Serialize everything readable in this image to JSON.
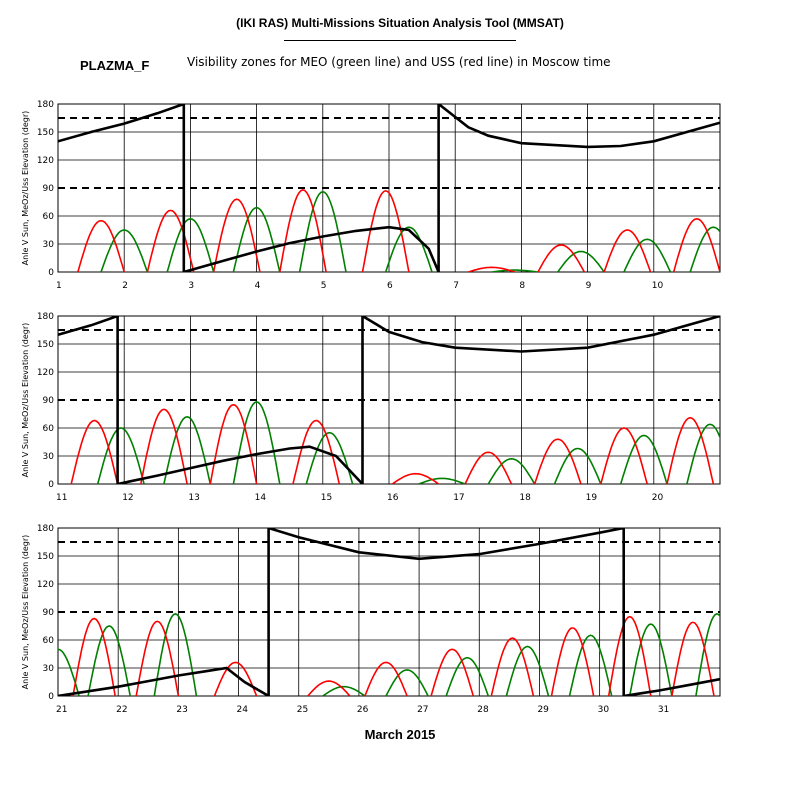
{
  "header": {
    "title": "(IKI RAS) Multi-Missions Situation Analysis Tool (MMSAT)",
    "code": "PLAZMA_F",
    "subtitle": "Visibility zones for MEO (green line) and USS (red line) in Moscow time",
    "month": "March 2015"
  },
  "chart_data": {
    "type": "line",
    "title": "(IKI RAS) Multi-Missions Situation Analysis Tool (MMSAT)",
    "subtitle": "Visibility zones for MEO (green line) and USS (red line) in Moscow time",
    "xlabel": "March 2015",
    "ylabel": "Anle V Sun, MeOz/Uss Elevation (degr)",
    "yticks": [
      0,
      30,
      60,
      90,
      120,
      150,
      180
    ],
    "ylim": [
      0,
      180
    ],
    "reference_lines": [
      90,
      165
    ],
    "grid": true,
    "colors": {
      "meo": "#008000",
      "uss": "#ff0000",
      "sun_angle": "#000000"
    },
    "panels": [
      {
        "xlim": [
          1,
          11
        ],
        "xticks": [
          "1",
          "2",
          "3",
          "4",
          "5",
          "6",
          "7",
          "8",
          "9",
          "10"
        ],
        "sun_angle": [
          [
            1,
            140
          ],
          [
            1.5,
            150
          ],
          [
            2,
            159
          ],
          [
            2.5,
            170
          ],
          [
            2.9,
            180
          ],
          [
            2.9,
            0
          ],
          [
            3.5,
            12
          ],
          [
            4,
            22
          ],
          [
            4.5,
            31
          ],
          [
            5,
            38
          ],
          [
            5.5,
            44
          ],
          [
            6,
            48
          ],
          [
            6.3,
            45
          ],
          [
            6.6,
            25
          ],
          [
            6.75,
            0
          ],
          [
            6.75,
            180
          ],
          [
            7.2,
            155
          ],
          [
            7.5,
            146
          ],
          [
            8,
            138
          ],
          [
            9,
            134
          ],
          [
            9.5,
            135
          ],
          [
            10,
            140
          ],
          [
            10.5,
            150
          ],
          [
            11,
            160
          ]
        ],
        "meo_peaks": [
          [
            2.0,
            45
          ],
          [
            3.0,
            57
          ],
          [
            4.0,
            69
          ],
          [
            5.0,
            86
          ],
          [
            6.3,
            48
          ],
          [
            7.9,
            2
          ],
          [
            8.9,
            22
          ],
          [
            9.9,
            35
          ],
          [
            10.9,
            48
          ]
        ],
        "uss_peaks": [
          [
            1.65,
            55
          ],
          [
            2.7,
            66
          ],
          [
            3.7,
            78
          ],
          [
            4.7,
            88
          ],
          [
            5.95,
            87
          ],
          [
            7.55,
            5
          ],
          [
            8.6,
            29
          ],
          [
            9.6,
            45
          ],
          [
            10.65,
            57
          ]
        ]
      },
      {
        "xlim": [
          11,
          21
        ],
        "xticks": [
          "11",
          "12",
          "13",
          "14",
          "15",
          "16",
          "17",
          "18",
          "19",
          "20"
        ],
        "sun_angle": [
          [
            11,
            160
          ],
          [
            11.5,
            170
          ],
          [
            11.9,
            180
          ],
          [
            11.9,
            0
          ],
          [
            12.5,
            9
          ],
          [
            13,
            17
          ],
          [
            13.5,
            25
          ],
          [
            14,
            32
          ],
          [
            14.5,
            38
          ],
          [
            14.8,
            40
          ],
          [
            15.2,
            30
          ],
          [
            15.6,
            0
          ],
          [
            15.6,
            180
          ],
          [
            16,
            163
          ],
          [
            16.5,
            152
          ],
          [
            17,
            146
          ],
          [
            18,
            142
          ],
          [
            19,
            146
          ],
          [
            20,
            160
          ],
          [
            21,
            180
          ]
        ],
        "meo_peaks": [
          [
            11.95,
            60
          ],
          [
            12.95,
            72
          ],
          [
            14.0,
            88
          ],
          [
            15.1,
            55
          ],
          [
            16.8,
            6
          ],
          [
            17.85,
            27
          ],
          [
            18.85,
            38
          ],
          [
            19.85,
            52
          ],
          [
            20.85,
            64
          ]
        ],
        "uss_peaks": [
          [
            11.55,
            68
          ],
          [
            12.6,
            80
          ],
          [
            13.65,
            85
          ],
          [
            14.9,
            68
          ],
          [
            16.4,
            11
          ],
          [
            17.5,
            34
          ],
          [
            18.55,
            48
          ],
          [
            19.55,
            60
          ],
          [
            20.55,
            71
          ]
        ]
      },
      {
        "xlim": [
          21,
          32
        ],
        "xticks": [
          "21",
          "22",
          "23",
          "24",
          "25",
          "26",
          "27",
          "28",
          "29",
          "30",
          "31"
        ],
        "sun_angle": [
          [
            21,
            0
          ],
          [
            21.5,
            5
          ],
          [
            22,
            10
          ],
          [
            22.5,
            16
          ],
          [
            23,
            22
          ],
          [
            23.5,
            27
          ],
          [
            23.8,
            30
          ],
          [
            24.1,
            15
          ],
          [
            24.5,
            0
          ],
          [
            24.5,
            180
          ],
          [
            25,
            170
          ],
          [
            26,
            154
          ],
          [
            27,
            147
          ],
          [
            28,
            152
          ],
          [
            29,
            163
          ],
          [
            30,
            175
          ],
          [
            30.4,
            180
          ],
          [
            30.4,
            0
          ],
          [
            31,
            6
          ],
          [
            31.5,
            12
          ],
          [
            32,
            18
          ]
        ],
        "meo_peaks": [
          [
            21.0,
            50
          ],
          [
            21.85,
            75
          ],
          [
            22.95,
            88
          ],
          [
            25.75,
            10
          ],
          [
            26.8,
            28
          ],
          [
            27.8,
            41
          ],
          [
            28.8,
            53
          ],
          [
            29.85,
            65
          ],
          [
            30.85,
            77
          ],
          [
            31.95,
            88
          ]
        ],
        "uss_peaks": [
          [
            21.6,
            83
          ],
          [
            22.65,
            80
          ],
          [
            23.95,
            36
          ],
          [
            25.5,
            16
          ],
          [
            26.45,
            36
          ],
          [
            27.55,
            50
          ],
          [
            28.55,
            62
          ],
          [
            29.55,
            73
          ],
          [
            30.5,
            85
          ],
          [
            31.55,
            79
          ]
        ]
      }
    ]
  }
}
